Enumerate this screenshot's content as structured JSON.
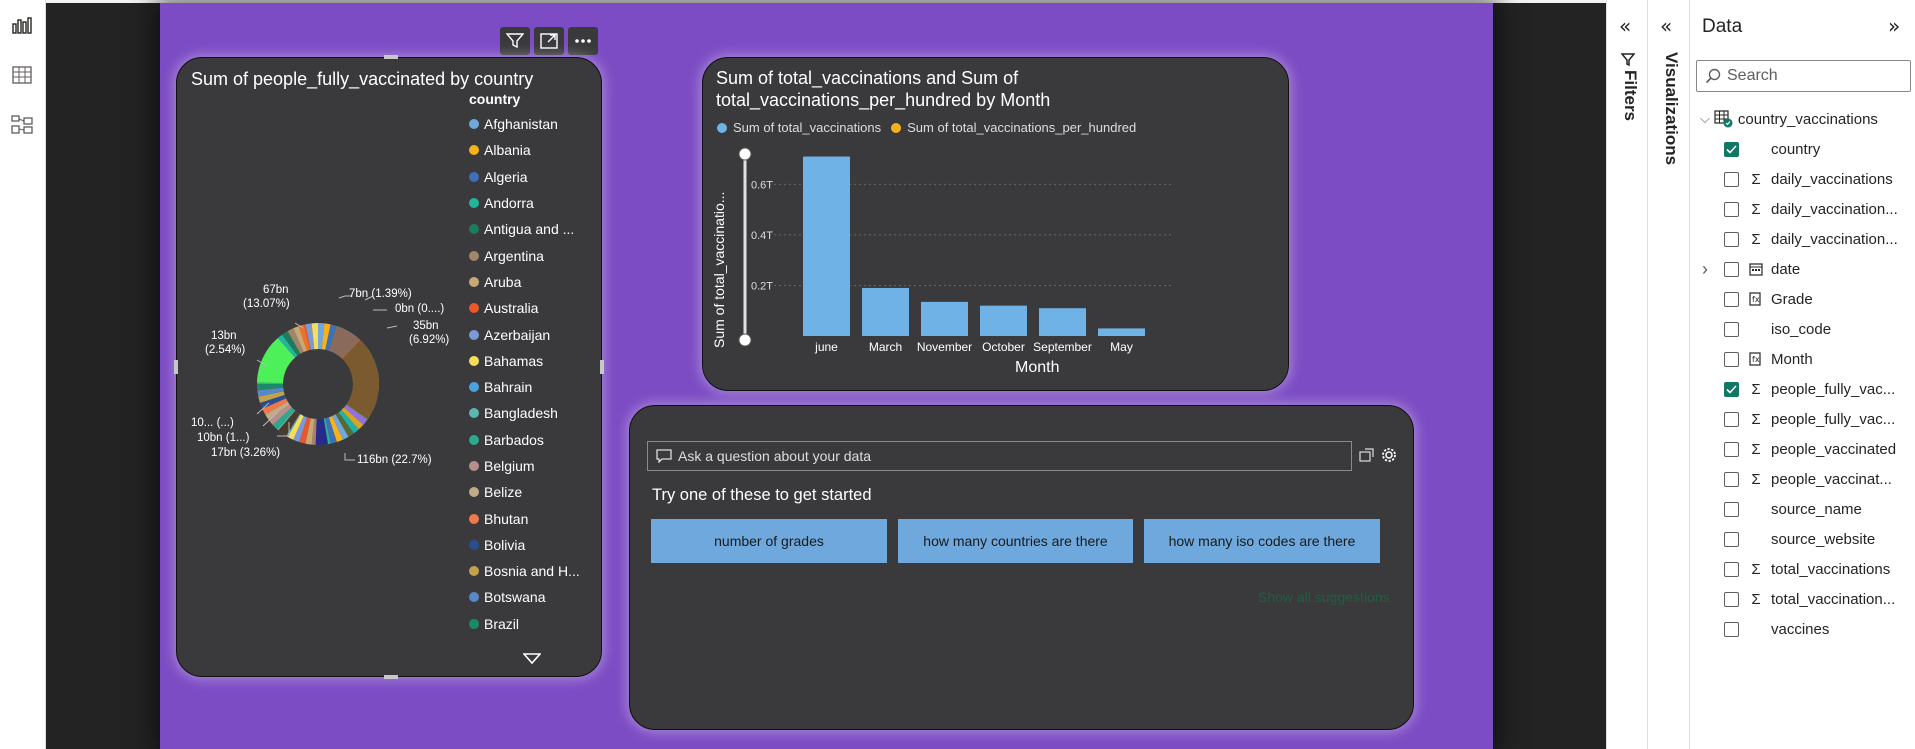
{
  "donut": {
    "title": "Sum of people_fully_vaccinated by country",
    "legend_header": "country",
    "legend": [
      {
        "name": "Afghanistan",
        "color": "#6fa8dc"
      },
      {
        "name": "Albania",
        "color": "#f5b21b"
      },
      {
        "name": "Algeria",
        "color": "#3f6fb5"
      },
      {
        "name": "Andorra",
        "color": "#23b59a"
      },
      {
        "name": "Antigua and ...",
        "color": "#1e7b5e"
      },
      {
        "name": "Argentina",
        "color": "#a0856a"
      },
      {
        "name": "Aruba",
        "color": "#c9a878"
      },
      {
        "name": "Australia",
        "color": "#e8582a"
      },
      {
        "name": "Azerbaijan",
        "color": "#7a99d6"
      },
      {
        "name": "Bahamas",
        "color": "#f7dd5c"
      },
      {
        "name": "Bahrain",
        "color": "#4aa3df"
      },
      {
        "name": "Bangladesh",
        "color": "#5ab8b0"
      },
      {
        "name": "Barbados",
        "color": "#2ea88c"
      },
      {
        "name": "Belgium",
        "color": "#b88e8a"
      },
      {
        "name": "Belize",
        "color": "#c2a98a"
      },
      {
        "name": "Bhutan",
        "color": "#f0784a"
      },
      {
        "name": "Bolivia",
        "color": "#294f8f"
      },
      {
        "name": "Bosnia and H...",
        "color": "#c1a24e"
      },
      {
        "name": "Botswana",
        "color": "#5a87c7"
      },
      {
        "name": "Brazil",
        "color": "#1c8a6a"
      }
    ],
    "slice_labels": [
      {
        "text": "116bn (22.7%)"
      },
      {
        "text": "67bn"
      },
      {
        "text": "(13.07%)"
      },
      {
        "text": "7bn (1.39%)"
      },
      {
        "text": "0bn (0....)"
      },
      {
        "text": "35bn"
      },
      {
        "text": "(6.92%)"
      },
      {
        "text": "13bn"
      },
      {
        "text": "(2.54%)"
      },
      {
        "text": "10... (...)"
      },
      {
        "text": "10bn (1...)"
      },
      {
        "text": "17bn (3.26%)"
      }
    ]
  },
  "bar": {
    "title_line1": "Sum of total_vaccinations and Sum of",
    "title_line2": "total_vaccinations_per_hundred by Month",
    "legend": [
      {
        "name": "Sum of total_vaccinations",
        "color": "#6fb2e6"
      },
      {
        "name": "Sum of total_vaccinations_per_hundred",
        "color": "#f5b21b"
      }
    ],
    "y_axis_label": "Sum of total_vaccinatio...",
    "x_axis_label": "Month"
  },
  "chart_data": {
    "type": "bar",
    "categories": [
      "june",
      "March",
      "November",
      "October",
      "September",
      "May"
    ],
    "series": [
      {
        "name": "Sum of total_vaccinations",
        "values": [
          0.71,
          0.19,
          0.135,
          0.12,
          0.11,
          0.03
        ]
      }
    ],
    "y_ticks": [
      "0.2T",
      "0.4T",
      "0.6T"
    ],
    "y_tick_values": [
      0.2,
      0.4,
      0.6
    ],
    "ylim": [
      0,
      0.72
    ],
    "grid": true
  },
  "qa": {
    "placeholder": "Ask a question about your data",
    "heading": "Try one of these to get started",
    "suggestions": [
      "number of grades",
      "how many countries are there",
      "how many iso codes are there"
    ],
    "show_all": "Show all suggestions"
  },
  "panes": {
    "filters_label": "Filters",
    "visualizations_label": "Visualizations",
    "data_title": "Data",
    "search_placeholder": "Search",
    "table_name": "country_vaccinations",
    "fields": [
      {
        "name": "country",
        "icon": "none",
        "checked": true
      },
      {
        "name": "daily_vaccinations",
        "icon": "sigma",
        "checked": false
      },
      {
        "name": "daily_vaccination...",
        "icon": "sigma",
        "checked": false
      },
      {
        "name": "daily_vaccination...",
        "icon": "sigma",
        "checked": false
      },
      {
        "name": "date",
        "icon": "calendar",
        "checked": false,
        "expandable": true
      },
      {
        "name": "Grade",
        "icon": "calc",
        "checked": false
      },
      {
        "name": "iso_code",
        "icon": "none",
        "checked": false
      },
      {
        "name": "Month",
        "icon": "calc",
        "checked": false
      },
      {
        "name": "people_fully_vac...",
        "icon": "sigma",
        "checked": true
      },
      {
        "name": "people_fully_vac...",
        "icon": "sigma",
        "checked": false
      },
      {
        "name": "people_vaccinated",
        "icon": "sigma",
        "checked": false
      },
      {
        "name": "people_vaccinat...",
        "icon": "sigma",
        "checked": false
      },
      {
        "name": "source_name",
        "icon": "none",
        "checked": false
      },
      {
        "name": "source_website",
        "icon": "none",
        "checked": false
      },
      {
        "name": "total_vaccinations",
        "icon": "sigma",
        "checked": false
      },
      {
        "name": "total_vaccination...",
        "icon": "sigma",
        "checked": false
      },
      {
        "name": "vaccines",
        "icon": "none",
        "checked": false
      }
    ]
  }
}
